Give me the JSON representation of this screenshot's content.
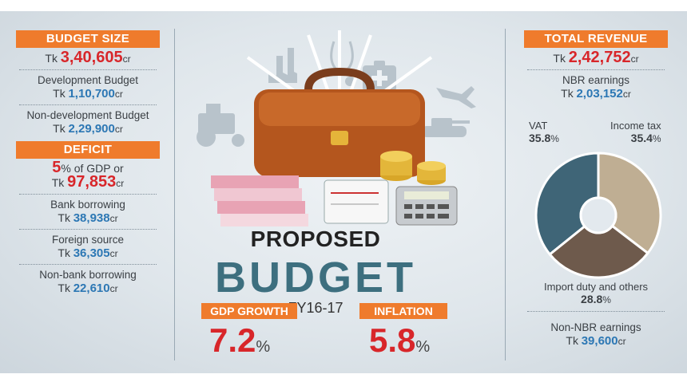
{
  "left": {
    "budget_size": {
      "header": "BUDGET SIZE",
      "tk": "Tk",
      "value": "3,40,605",
      "unit": "cr"
    },
    "development": {
      "label": "Development Budget",
      "tk": "Tk",
      "value": "1,10,700",
      "unit": "cr"
    },
    "non_development": {
      "label": "Non-development Budget",
      "tk": "Tk",
      "value": "2,29,900",
      "unit": "cr"
    },
    "deficit": {
      "header": "DEFICIT",
      "pct": "5",
      "pct_text": "% of GDP or",
      "tk": "Tk",
      "value": "97,853",
      "unit": "cr"
    },
    "bank": {
      "label": "Bank borrowing",
      "tk": "Tk",
      "value": "38,938",
      "unit": "cr"
    },
    "foreign": {
      "label": "Foreign source",
      "tk": "Tk",
      "value": "36,305",
      "unit": "cr"
    },
    "nonbank": {
      "label": "Non-bank borrowing",
      "tk": "Tk",
      "value": "22,610",
      "unit": "cr"
    }
  },
  "center": {
    "proposed": "PROPOSED",
    "budget": "BUDGET",
    "fy": "FY16-17",
    "gdp_header": "GDP GROWTH",
    "gdp_value": "7.2",
    "gdp_unit": "%",
    "inflation_header": "INFLATION",
    "inflation_value": "5.8",
    "inflation_unit": "%"
  },
  "right": {
    "total": {
      "header": "TOTAL REVENUE",
      "tk": "Tk",
      "value": "2,42,752",
      "unit": "cr"
    },
    "nbr": {
      "label": "NBR earnings",
      "tk": "Tk",
      "value": "2,03,152",
      "unit": "cr"
    },
    "vat": {
      "label": "VAT",
      "value": "35.8",
      "unit": "%"
    },
    "income": {
      "label": "Income tax",
      "value": "35.4",
      "unit": "%"
    },
    "import": {
      "label": "Import duty and others",
      "value": "28.8",
      "unit": "%"
    },
    "non_nbr": {
      "label": "Non-NBR earnings",
      "tk": "Tk",
      "value": "39,600",
      "unit": "cr"
    }
  },
  "colors": {
    "accent": "#ef7b2c",
    "red": "#d8262a",
    "blue": "#2c77b4",
    "vat": "#3f6577",
    "income": "#bfae93",
    "import": "#6e5a4c"
  },
  "chart_data": {
    "type": "pie",
    "variant": "donut",
    "categories": [
      "VAT",
      "Income tax",
      "Import duty and others"
    ],
    "values": [
      35.8,
      35.4,
      28.8
    ]
  }
}
